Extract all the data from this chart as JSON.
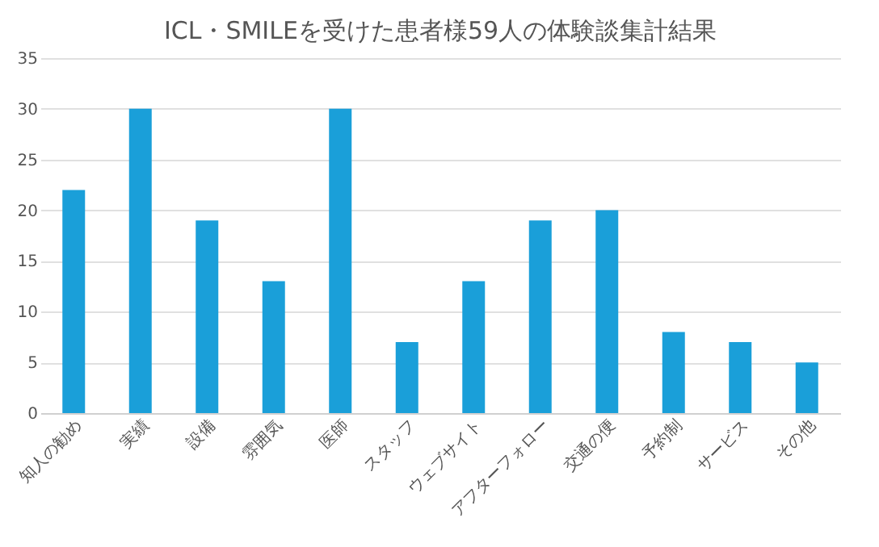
{
  "chart_data": {
    "type": "bar",
    "title": "ICL・SMILEを受けた患者様59人の体験談集計結果",
    "categories": [
      "知人の勧め",
      "実績",
      "設備",
      "雰囲気",
      "医師",
      "スタッフ",
      "ウェブサイト",
      "アフターフォロー",
      "交通の便",
      "予約制",
      "サービス",
      "その他"
    ],
    "values": [
      22,
      30,
      19,
      13,
      30,
      7,
      13,
      19,
      20,
      8,
      7,
      5
    ],
    "color": "#1a9fd9",
    "ylim": [
      0,
      35
    ],
    "yticks": [
      0,
      5,
      10,
      15,
      20,
      25,
      30,
      35
    ],
    "grid": "y"
  }
}
